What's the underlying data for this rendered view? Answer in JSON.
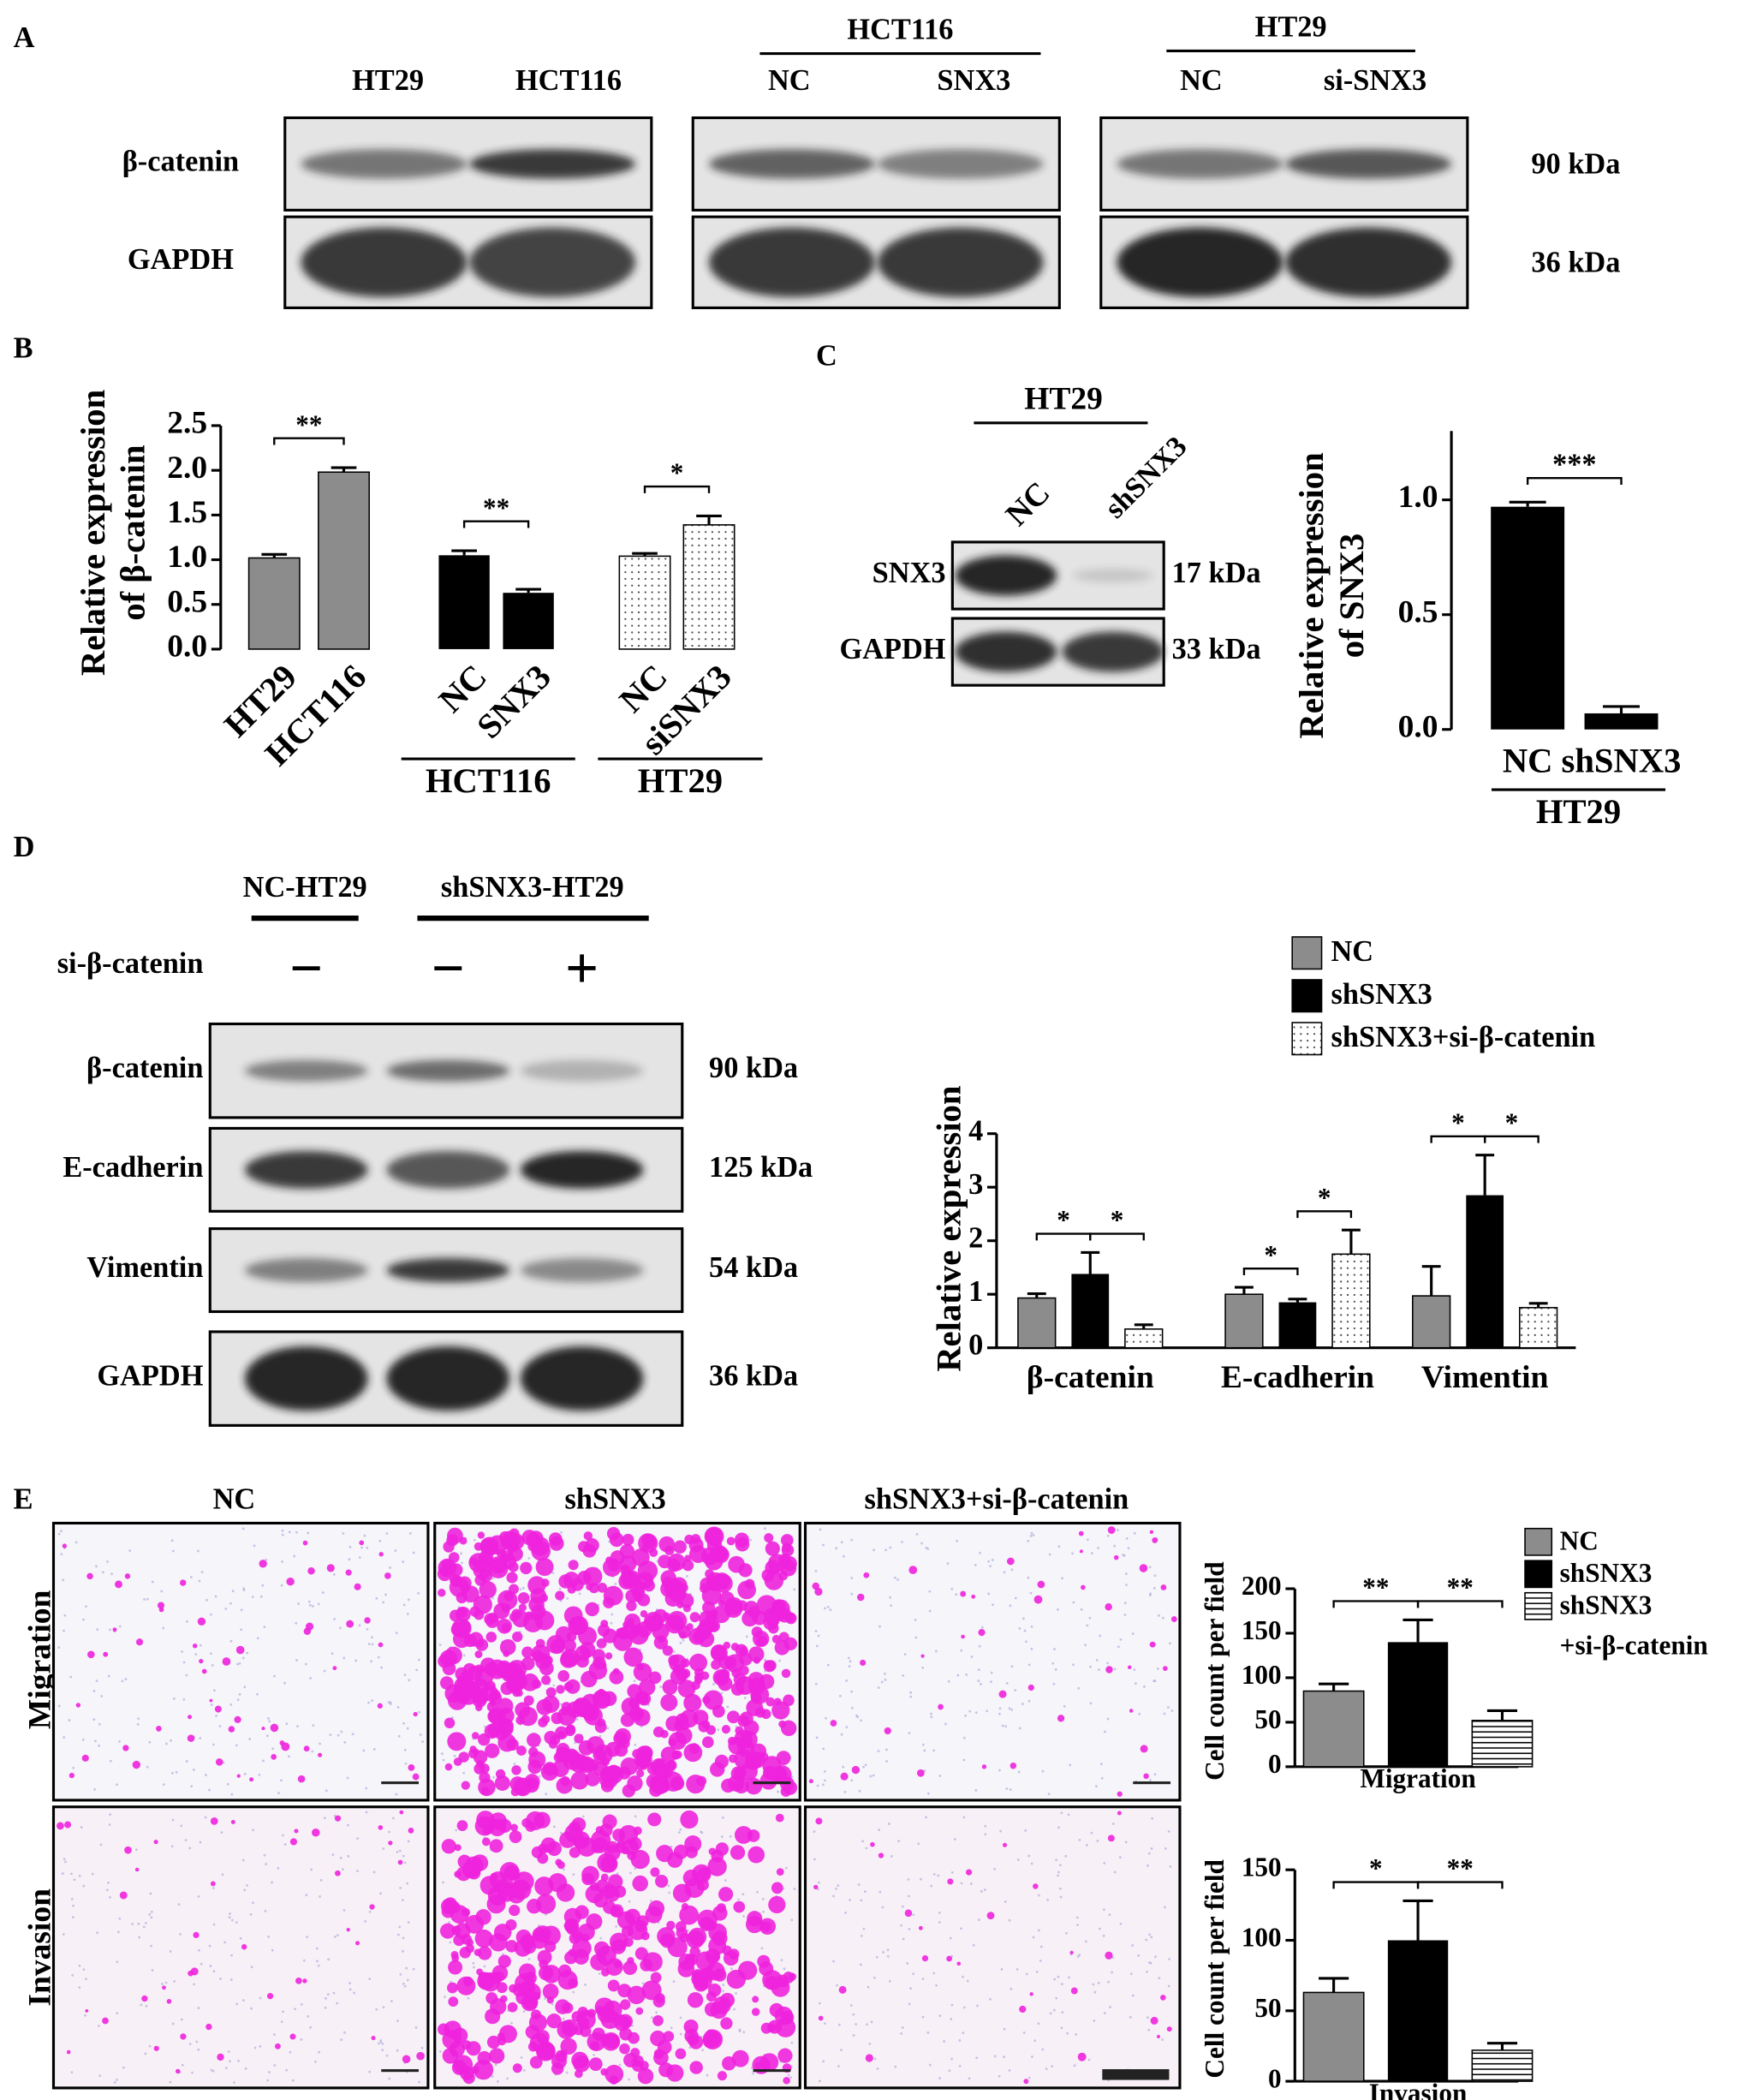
{
  "panels": {
    "panel_a": {
      "label": "A",
      "blots": [
        {
          "lanes": [
            "HT29",
            "HCT116"
          ]
        },
        {
          "group": "HCT116",
          "lanes": [
            "NC",
            "SNX3"
          ]
        },
        {
          "group": "HT29",
          "lanes": [
            "NC",
            "si-SNX3"
          ]
        }
      ],
      "proteins": [
        "β-catenin",
        "GAPDH"
      ],
      "sizes": [
        "90 kDa",
        "36 kDa"
      ]
    },
    "panel_b": {
      "label": "B",
      "chart_data": {
        "type": "bar",
        "ylabel": [
          "Relative expression",
          "of β-catenin"
        ],
        "categories": [
          "HT29",
          "HCT116",
          "NC",
          "SNX3",
          "NC",
          "siSNX3"
        ],
        "values": [
          1.02,
          1.98,
          1.05,
          0.63,
          1.04,
          1.39
        ],
        "errors": [
          0.04,
          0.05,
          0.05,
          0.04,
          0.03,
          0.1
        ],
        "fills": [
          "#8c8c8c",
          "#8c8c8c",
          "#000000",
          "#000000",
          "dots",
          "dots"
        ],
        "groups": [
          {
            "label": "HCT116"
          },
          {
            "label": "HT29"
          }
        ],
        "significance": [
          {
            "pair": [
              0,
              1
            ],
            "label": "**"
          },
          {
            "pair": [
              2,
              3
            ],
            "label": "**"
          },
          {
            "pair": [
              4,
              5
            ],
            "label": "*"
          }
        ],
        "ylim": [
          0,
          2.5
        ],
        "yticks": [
          {
            "value": 0,
            "label": "0.0"
          },
          0.5,
          {
            "value": 1,
            "label": "1.0"
          },
          1.5,
          {
            "value": 2,
            "label": "2.0"
          },
          2.5
        ]
      }
    },
    "panel_c": {
      "label": "C",
      "blot": {
        "group": "HT29",
        "lanes": [
          "NC",
          "shSNX3"
        ],
        "proteins": [
          "SNX3",
          "GAPDH"
        ],
        "sizes": [
          "17 kDa",
          "33 kDa"
        ]
      },
      "chart_data": {
        "type": "bar",
        "ylabel": [
          "Relative expression",
          "of SNX3"
        ],
        "categories": [
          "NC",
          "shSNX3"
        ],
        "values": [
          0.97,
          0.07
        ],
        "errors": [
          0.02,
          0.03
        ],
        "fills": [
          "#000000",
          "#000000"
        ],
        "groups": [
          {
            "label": "HT29"
          }
        ],
        "significance": [
          {
            "pair": [
              0,
              1
            ],
            "label": "***"
          }
        ],
        "ylim": [
          0,
          1.3
        ],
        "yticks": [
          {
            "value": 0,
            "label": "0.0"
          },
          0.5,
          {
            "value": 1,
            "label": "1.0"
          }
        ]
      }
    },
    "panel_d": {
      "label": "D",
      "blot": {
        "groups": [
          "NC-HT29",
          "shSNX3-HT29"
        ],
        "treatment": "si-β-catenin",
        "signs": [
          "−",
          "−",
          "+"
        ],
        "proteins": [
          "β-catenin",
          "E-cadherin",
          "Vimentin",
          "GAPDH"
        ],
        "sizes": [
          "90 kDa",
          "125 kDa",
          "54 kDa",
          "36 kDa"
        ]
      },
      "chart_data": {
        "type": "bar",
        "ylabel": "Relative expression",
        "categories": [
          "β-catenin",
          "E-cadherin",
          "Vimentin"
        ],
        "series": [
          {
            "name": "NC",
            "fill": "#8c8c8c",
            "values": [
              0.93,
              1.0,
              0.97
            ],
            "errors": [
              0.08,
              0.13,
              0.55
            ]
          },
          {
            "name": "shSNX3",
            "fill": "#000000",
            "values": [
              1.38,
              0.85,
              2.85
            ],
            "errors": [
              0.4,
              0.06,
              0.75
            ]
          },
          {
            "name": "shSNX3+si-β-catenin",
            "fill": "dots",
            "values": [
              0.35,
              1.75,
              0.75
            ],
            "errors": [
              0.08,
              0.45,
              0.08
            ]
          }
        ],
        "significance": [
          {
            "category": 0,
            "pair": [
              0,
              1
            ],
            "label": "*"
          },
          {
            "category": 0,
            "pair": [
              1,
              2
            ],
            "label": "*"
          },
          {
            "category": 1,
            "pair": [
              0,
              1
            ],
            "label": "*"
          },
          {
            "category": 1,
            "pair": [
              1,
              2
            ],
            "label": "*"
          },
          {
            "category": 2,
            "pair": [
              0,
              1
            ],
            "label": "*"
          },
          {
            "category": 2,
            "pair": [
              1,
              2
            ],
            "label": "*"
          }
        ],
        "ylim": [
          0,
          4
        ],
        "yticks": [
          0,
          1,
          2,
          3,
          4
        ]
      }
    },
    "panel_e": {
      "label": "E",
      "columns": [
        "NC",
        "shSNX3",
        "shSNX3+si-β-catenin"
      ],
      "rows": [
        "Migration",
        "Invasion"
      ],
      "chart_data": [
        {
          "type": "bar",
          "ylabel": "Cell count per field",
          "categories": [
            "Migration"
          ],
          "series": [
            {
              "name": "NC",
              "fill": "#8c8c8c",
              "values": [
                85
              ],
              "errors": [
                8
              ]
            },
            {
              "name": "shSNX3",
              "fill": "#000000",
              "values": [
                140
              ],
              "errors": [
                25
              ]
            },
            {
              "name": "shSNX3\n+si-β-catenin",
              "fill": "stripes",
              "values": [
                52
              ],
              "errors": [
                11
              ]
            }
          ],
          "significance": [
            {
              "pair": [
                0,
                1
              ],
              "label": "**"
            },
            {
              "pair": [
                1,
                2
              ],
              "label": "**"
            }
          ],
          "ylim": [
            0,
            200
          ],
          "yticks": [
            0,
            50,
            100,
            150,
            200
          ]
        },
        {
          "type": "bar",
          "ylabel": "Cell count per field",
          "categories": [
            "Invasion"
          ],
          "series": [
            {
              "fill": "#8c8c8c",
              "values": [
                63
              ],
              "errors": [
                10
              ]
            },
            {
              "fill": "#000000",
              "values": [
                100
              ],
              "errors": [
                28
              ]
            },
            {
              "fill": "stripes",
              "values": [
                22
              ],
              "errors": [
                5
              ]
            }
          ],
          "significance": [
            {
              "pair": [
                0,
                1
              ],
              "label": "*"
            },
            {
              "pair": [
                1,
                2
              ],
              "label": "**"
            }
          ],
          "ylim": [
            0,
            150
          ],
          "yticks": [
            0,
            50,
            100,
            150
          ]
        }
      ]
    }
  }
}
